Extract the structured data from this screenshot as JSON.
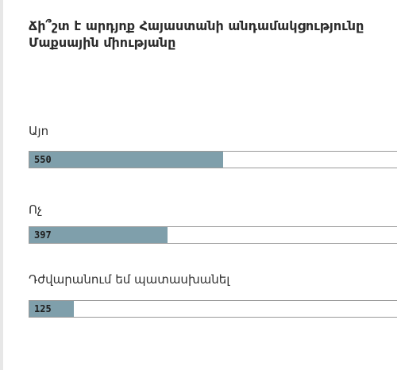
{
  "poll": {
    "question": "Ճի՞շտ է արդյոք Հայաստանի անդամակցությունը Մաքսային միությանը",
    "bar_color": "#7f9fab",
    "options": [
      {
        "label": "Այո",
        "votes": "550",
        "share": 0.52
      },
      {
        "label": "Ոչ",
        "votes": "397",
        "share": 0.37
      },
      {
        "label": "Դժվարանում եմ պատասխանել",
        "votes": "125",
        "share": 0.12
      }
    ]
  }
}
